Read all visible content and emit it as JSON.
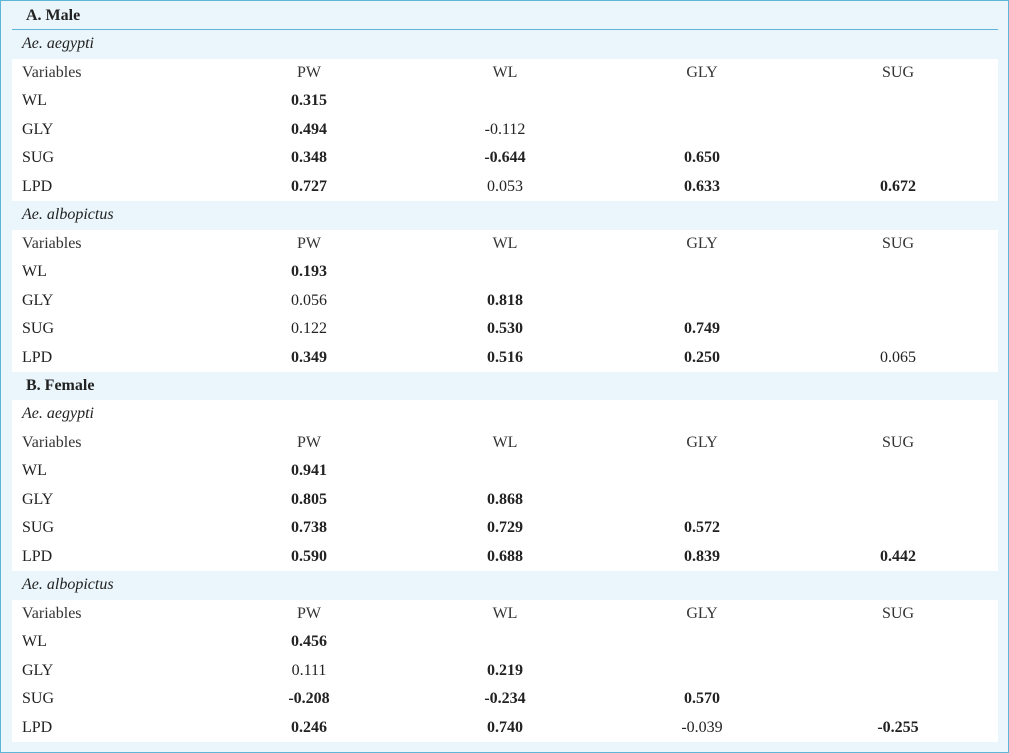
{
  "columns": [
    "Variables",
    "PW",
    "WL",
    "GLY",
    "SUG"
  ],
  "sections": [
    {
      "title": "A. Male",
      "groups": [
        {
          "species": "Ae. aegypti",
          "rows": [
            {
              "var": "WL",
              "pw": "0.315",
              "wl": "",
              "gly": "",
              "sug": ""
            },
            {
              "var": "GLY",
              "pw": "0.494",
              "wl": "-0.112",
              "gly": "",
              "sug": ""
            },
            {
              "var": "SUG",
              "pw": "0.348",
              "wl": "-0.644",
              "gly": "0.650",
              "sug": ""
            },
            {
              "var": "LPD",
              "pw": "0.727",
              "wl": "0.053",
              "gly": "0.633",
              "sug": "0.672"
            }
          ]
        },
        {
          "species": "Ae. albopictus",
          "rows": [
            {
              "var": "WL",
              "pw": "0.193",
              "wl": "",
              "gly": "",
              "sug": ""
            },
            {
              "var": "GLY",
              "pw": "0.056",
              "wl": "0.818",
              "gly": "",
              "sug": ""
            },
            {
              "var": "SUG",
              "pw": "0.122",
              "wl": "0.530",
              "gly": "0.749",
              "sug": ""
            },
            {
              "var": "LPD",
              "pw": "0.349",
              "wl": "0.516",
              "gly": "0.250",
              "sug": "0.065"
            }
          ]
        }
      ]
    },
    {
      "title": "B. Female",
      "groups": [
        {
          "species": "Ae. aegypti",
          "rows": [
            {
              "var": "WL",
              "pw": "0.941",
              "wl": "",
              "gly": "",
              "sug": ""
            },
            {
              "var": "GLY",
              "pw": "0.805",
              "wl": "0.868",
              "gly": "",
              "sug": ""
            },
            {
              "var": "SUG",
              "pw": "0.738",
              "wl": "0.729",
              "gly": "0.572",
              "sug": ""
            },
            {
              "var": "LPD",
              "pw": "0.590",
              "wl": "0.688",
              "gly": "0.839",
              "sug": "0.442"
            }
          ]
        },
        {
          "species": "Ae. albopictus",
          "rows": [
            {
              "var": "WL",
              "pw": "0.456",
              "wl": "",
              "gly": "",
              "sug": ""
            },
            {
              "var": "GLY",
              "pw": "0.111",
              "wl": "0.219",
              "gly": "",
              "sug": ""
            },
            {
              "var": "SUG",
              "pw": "-0.208",
              "wl": "-0.234",
              "gly": "0.570",
              "sug": ""
            },
            {
              "var": "LPD",
              "pw": "0.246",
              "wl": "0.740",
              "gly": "-0.039",
              "sug": "-0.255"
            }
          ]
        }
      ]
    }
  ]
}
